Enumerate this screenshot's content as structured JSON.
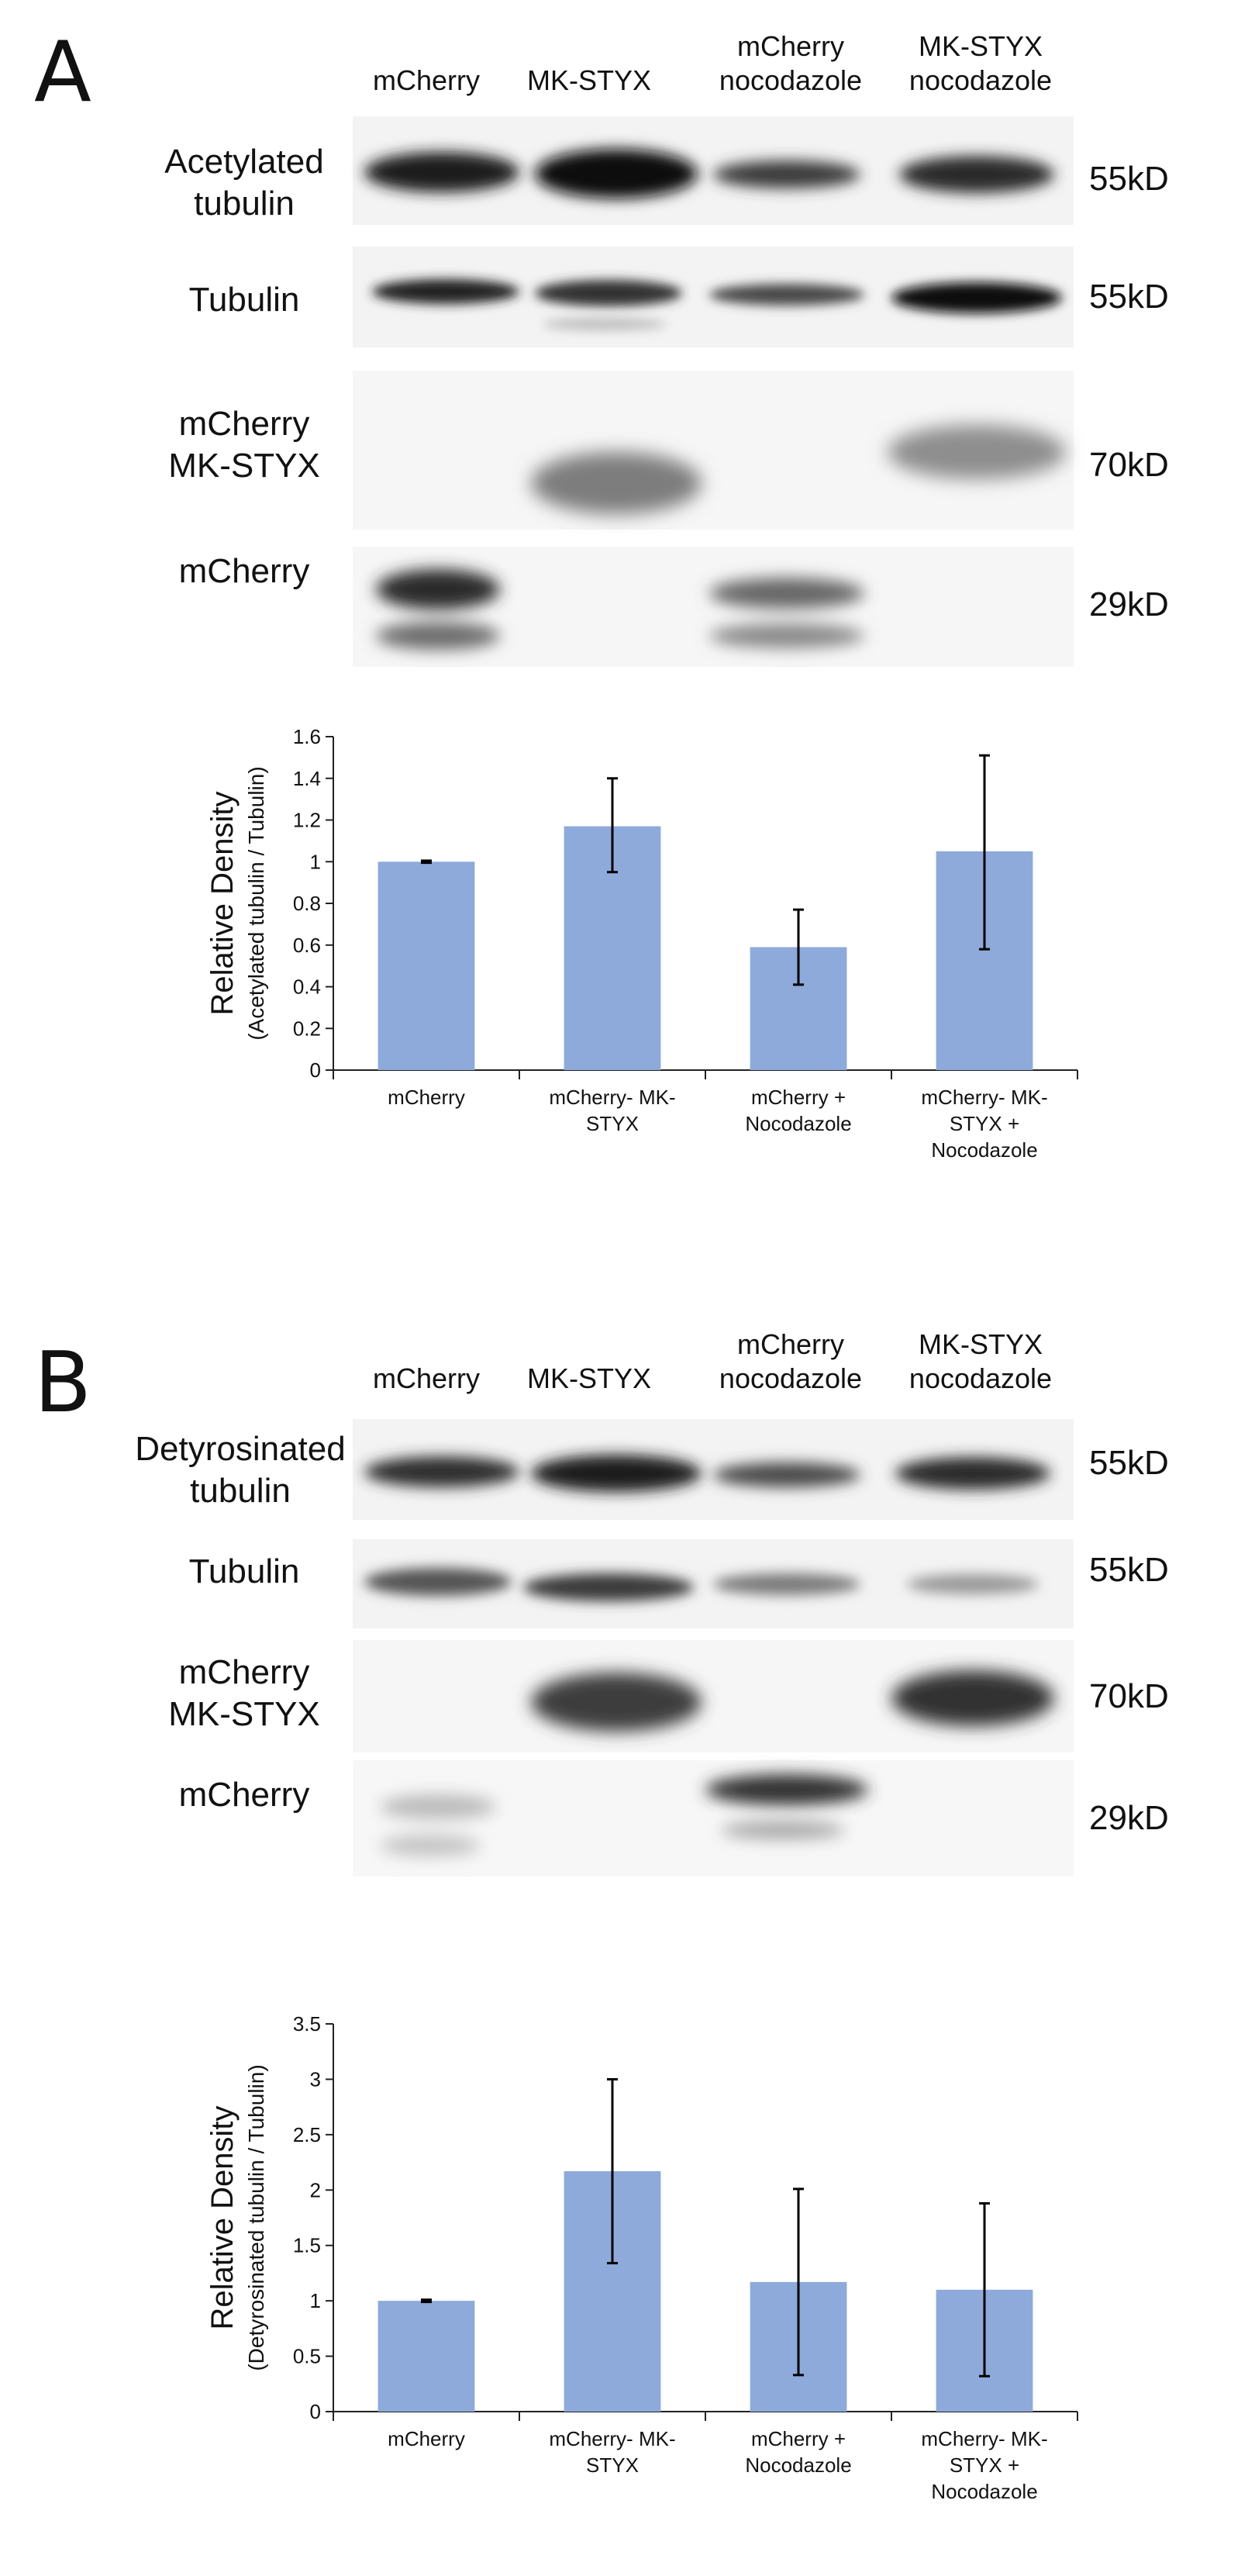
{
  "panel_a": {
    "letter": "A",
    "lanes": [
      {
        "line1": "mCherry",
        "line2": ""
      },
      {
        "line1": "MK-STYX",
        "line2": ""
      },
      {
        "line1": "mCherry",
        "line2": "nocodazole"
      },
      {
        "line1": "MK-STYX",
        "line2": "nocodazole"
      }
    ],
    "blots": [
      {
        "label_line1": "Acetylated",
        "label_line2": "tubulin",
        "kd": "55kD"
      },
      {
        "label_line1": "Tubulin",
        "label_line2": "",
        "kd": "55kD"
      },
      {
        "label_line1": "mCherry",
        "label_line2": "MK-STYX",
        "kd": "70kD"
      },
      {
        "label_line1": "mCherry",
        "label_line2": "",
        "kd": "29kD"
      }
    ]
  },
  "panel_b": {
    "letter": "B",
    "lanes": [
      {
        "line1": "mCherry",
        "line2": ""
      },
      {
        "line1": "MK-STYX",
        "line2": ""
      },
      {
        "line1": "mCherry",
        "line2": "nocodazole"
      },
      {
        "line1": "MK-STYX",
        "line2": "nocodazole"
      }
    ],
    "blots": [
      {
        "label_line1": "Detyrosinated",
        "label_line2": "tubulin",
        "kd": "55kD"
      },
      {
        "label_line1": "Tubulin",
        "label_line2": "",
        "kd": "55kD"
      },
      {
        "label_line1": "mCherry",
        "label_line2": "MK-STYX",
        "kd": "70kD"
      },
      {
        "label_line1": "mCherry",
        "label_line2": "",
        "kd": "29kD"
      }
    ]
  },
  "chart_data": [
    {
      "type": "bar",
      "title": "",
      "ylabel": "Relative Density",
      "ylabel_sub": "(Acetylated tubulin / Tubulin)",
      "xlabel": "",
      "ylim": [
        0,
        1.6
      ],
      "yticks": [
        "0",
        "0.2",
        "0.4",
        "0.6",
        "0.8",
        "1",
        "1.2",
        "1.4",
        "1.6"
      ],
      "categories": [
        {
          "line1": "mCherry",
          "line2": "",
          "line3": ""
        },
        {
          "line1": "mCherry- MK-",
          "line2": "STYX",
          "line3": ""
        },
        {
          "line1": "mCherry +",
          "line2": "Nocodazole",
          "line3": ""
        },
        {
          "line1": "mCherry- MK-",
          "line2": "STYX +",
          "line3": "Nocodazole"
        }
      ],
      "values": [
        1.0,
        1.17,
        0.59,
        1.05
      ],
      "error_low": [
        0.995,
        0.95,
        0.41,
        0.58
      ],
      "error_high": [
        1.005,
        1.4,
        0.77,
        1.51
      ],
      "grid": false,
      "bar_color": "#8eaadb"
    },
    {
      "type": "bar",
      "title": "",
      "ylabel": "Relative Density",
      "ylabel_sub": "(Detyrosinated tubulin / Tubulin)",
      "xlabel": "",
      "ylim": [
        0,
        3.5
      ],
      "yticks": [
        "0",
        "0.5",
        "1",
        "1.5",
        "2",
        "2.5",
        "3",
        "3.5"
      ],
      "categories": [
        {
          "line1": "mCherry",
          "line2": "",
          "line3": ""
        },
        {
          "line1": "mCherry- MK-",
          "line2": "STYX",
          "line3": ""
        },
        {
          "line1": "mCherry +",
          "line2": "Nocodazole",
          "line3": ""
        },
        {
          "line1": "mCherry- MK-",
          "line2": "STYX +",
          "line3": "Nocodazole"
        }
      ],
      "values": [
        1.0,
        2.17,
        1.17,
        1.1
      ],
      "error_low": [
        0.99,
        1.34,
        0.33,
        0.32
      ],
      "error_high": [
        1.01,
        3.0,
        2.01,
        1.88
      ],
      "grid": false,
      "bar_color": "#8eaadb"
    }
  ]
}
